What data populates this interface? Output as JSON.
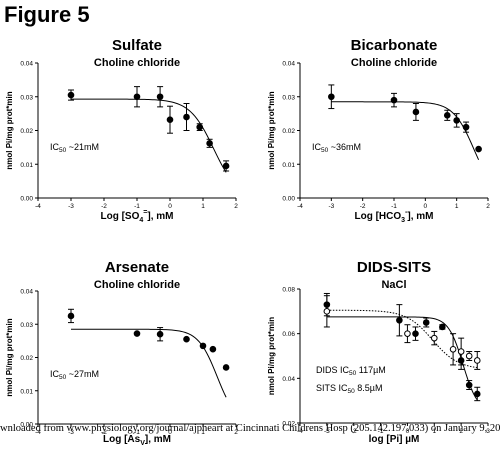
{
  "figure_title": "Figure 5",
  "footer_text": "wnloaded from www.physiology.org/journal/ajpheart at Cincinnati Childrens Hosp (205.142.197.033) on January 9, 20",
  "chart_data": [
    {
      "type": "scatter",
      "title": "Sulfate",
      "subtitle": "Choline chloride",
      "xlabel_parts": [
        "Log [SO",
        "4",
        "=",
        "], mM"
      ],
      "ylabel": "nmol Pi/mg prot*min",
      "annotations": [
        [
          "IC",
          "50",
          " ~21mM"
        ]
      ],
      "xlim": [
        -4,
        2
      ],
      "ylim": [
        0,
        0.04
      ],
      "xticks": [
        -4,
        -3,
        -2,
        -1,
        0,
        1,
        2
      ],
      "yticks": [
        0.0,
        0.01,
        0.02,
        0.03,
        0.04
      ],
      "ytick_labels": [
        "0.00",
        "0.01",
        "0.02",
        "0.03",
        "0.04"
      ],
      "series": [
        {
          "marker": "filled-circle",
          "points": [
            {
              "x": -3.0,
              "y": 0.0305,
              "err": 0.0015
            },
            {
              "x": -1.0,
              "y": 0.03,
              "err": 0.003
            },
            {
              "x": -0.3,
              "y": 0.03,
              "err": 0.003
            },
            {
              "x": 0.0,
              "y": 0.0232,
              "err": 0.004
            },
            {
              "x": 0.5,
              "y": 0.024,
              "err": 0.004
            },
            {
              "x": 0.9,
              "y": 0.021,
              "err": 0.001
            },
            {
              "x": 1.2,
              "y": 0.0162,
              "err": 0.0012
            },
            {
              "x": 1.7,
              "y": 0.0095,
              "err": 0.0015
            }
          ],
          "fit": {
            "top": 0.0293,
            "bottom": 0.0,
            "logIC50": 1.32,
            "hill": 1.2
          }
        }
      ]
    },
    {
      "type": "scatter",
      "title": "Bicarbonate",
      "subtitle": "Choline chloride",
      "xlabel_parts": [
        "Log [HCO",
        "3",
        "-",
        "], mM"
      ],
      "ylabel": "nmol Pi/mg prot*min",
      "annotations": [
        [
          "IC",
          "50",
          " ~36mM"
        ]
      ],
      "xlim": [
        -4,
        2
      ],
      "ylim": [
        0,
        0.04
      ],
      "xticks": [
        -4,
        -3,
        -2,
        -1,
        0,
        1,
        2
      ],
      "yticks": [
        0.0,
        0.01,
        0.02,
        0.03,
        0.04
      ],
      "ytick_labels": [
        "0.00",
        "0.01",
        "0.02",
        "0.03",
        "0.04"
      ],
      "series": [
        {
          "marker": "filled-circle",
          "points": [
            {
              "x": -3.0,
              "y": 0.03,
              "err": 0.0035
            },
            {
              "x": -1.0,
              "y": 0.029,
              "err": 0.002
            },
            {
              "x": -0.3,
              "y": 0.0255,
              "err": 0.0025
            },
            {
              "x": 0.7,
              "y": 0.0245,
              "err": 0.0015
            },
            {
              "x": 1.0,
              "y": 0.023,
              "err": 0.002
            },
            {
              "x": 1.3,
              "y": 0.021,
              "err": 0.0015
            },
            {
              "x": 1.7,
              "y": 0.0145,
              "err": 0.0
            }
          ],
          "fit": {
            "top": 0.0285,
            "bottom": 0.0,
            "logIC50": 1.56,
            "hill": 1.3
          }
        }
      ]
    },
    {
      "type": "scatter",
      "title": "Arsenate",
      "subtitle": "Choline chloride",
      "xlabel_parts": [
        "Log [As",
        "V",
        "",
        "], mM"
      ],
      "ylabel": "nmol Pi/mg prot*min",
      "annotations": [
        [
          "IC",
          "50",
          " ~27mM"
        ]
      ],
      "xlim": [
        -4,
        2
      ],
      "ylim": [
        0,
        0.04
      ],
      "xticks": [
        -4,
        -3,
        -2,
        -1,
        0,
        1,
        2
      ],
      "yticks": [
        0.0,
        0.01,
        0.02,
        0.03,
        0.04
      ],
      "ytick_labels": [
        "0.00",
        "0.01",
        "0.02",
        "0.03",
        "0.04"
      ],
      "series": [
        {
          "marker": "filled-circle",
          "points": [
            {
              "x": -3.0,
              "y": 0.0325,
              "err": 0.002
            },
            {
              "x": -1.0,
              "y": 0.0272,
              "err": 0.0
            },
            {
              "x": -0.3,
              "y": 0.027,
              "err": 0.002
            },
            {
              "x": 0.5,
              "y": 0.0255,
              "err": 0.0
            },
            {
              "x": 1.0,
              "y": 0.0235,
              "err": 0.0
            },
            {
              "x": 1.3,
              "y": 0.0225,
              "err": 0.0
            },
            {
              "x": 1.7,
              "y": 0.017,
              "err": 0.0
            }
          ],
          "fit": {
            "top": 0.0285,
            "bottom": 0.0,
            "logIC50": 1.43,
            "hill": 1.5
          }
        }
      ]
    },
    {
      "type": "scatter",
      "title": "DIDS-SITS",
      "subtitle": "NaCl",
      "xlabel_parts": [
        "log [Pi] ",
        "",
        "",
        "µM"
      ],
      "ylabel": "nmol Pi/mg prot*min",
      "annotations": [
        [
          "DIDS IC",
          "50",
          " 117µM"
        ],
        [
          "SITS IC",
          "50",
          " 8.5µM"
        ]
      ],
      "xlim": [
        -4,
        3
      ],
      "ylim": [
        0.02,
        0.08
      ],
      "xticks": [
        -4,
        -3,
        -2,
        -1,
        0,
        1,
        2,
        3
      ],
      "yticks": [
        0.02,
        0.04,
        0.06,
        0.08
      ],
      "ytick_labels": [
        "0.02",
        "0.04",
        "0.06",
        "0.08"
      ],
      "series": [
        {
          "marker": "filled-circle",
          "points": [
            {
              "x": -3.0,
              "y": 0.073,
              "err": 0.005
            },
            {
              "x": -0.3,
              "y": 0.066,
              "err": 0.007
            },
            {
              "x": 0.3,
              "y": 0.06,
              "err": 0.003
            },
            {
              "x": 0.7,
              "y": 0.065,
              "err": 0.002
            },
            {
              "x": 1.3,
              "y": 0.063,
              "err": 0.001
            },
            {
              "x": 2.0,
              "y": 0.048,
              "err": 0.004
            },
            {
              "x": 2.3,
              "y": 0.037,
              "err": 0.002
            },
            {
              "x": 2.6,
              "y": 0.033,
              "err": 0.003
            }
          ],
          "fit": {
            "top": 0.0675,
            "bottom": 0.025,
            "logIC50": 2.07,
            "hill": 1.6,
            "style": "solid"
          }
        },
        {
          "marker": "open-circle",
          "points": [
            {
              "x": -3.0,
              "y": 0.07,
              "err": 0.007
            },
            {
              "x": 0.0,
              "y": 0.06,
              "err": 0.004
            },
            {
              "x": 1.0,
              "y": 0.058,
              "err": 0.003
            },
            {
              "x": 1.7,
              "y": 0.053,
              "err": 0.007
            },
            {
              "x": 2.0,
              "y": 0.052,
              "err": 0.006
            },
            {
              "x": 2.3,
              "y": 0.05,
              "err": 0.002
            },
            {
              "x": 2.6,
              "y": 0.048,
              "err": 0.004
            }
          ],
          "fit": {
            "top": 0.0705,
            "bottom": 0.044,
            "logIC50": 0.93,
            "hill": 0.9,
            "style": "dotted"
          }
        }
      ]
    }
  ]
}
